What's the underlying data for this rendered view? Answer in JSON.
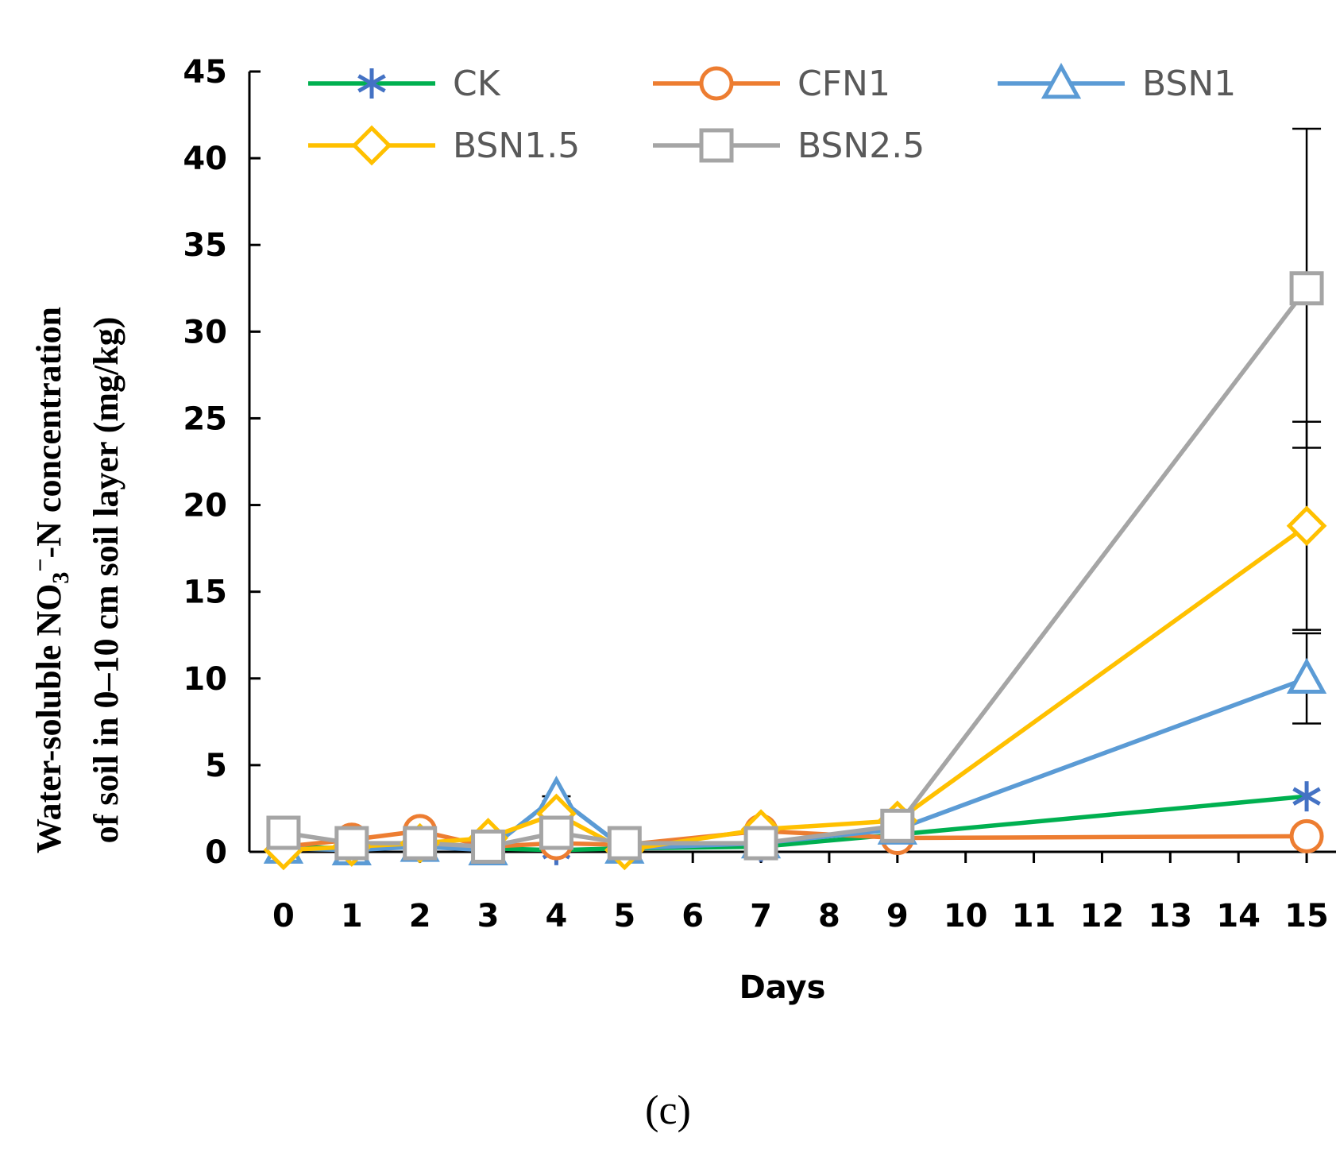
{
  "chart_data": {
    "type": "line",
    "title": "",
    "xlabel": "Days",
    "ylabel_line1": {
      "pre": "Water-soluble NO",
      "sub": "3",
      "sup": "−",
      "post": "-N concentration"
    },
    "ylabel_line2": "of soil in 0–10 cm soil layer (mg/kg)",
    "caption": "(c)",
    "x_ticks": [
      0,
      1,
      2,
      3,
      4,
      5,
      6,
      7,
      8,
      9,
      10,
      11,
      12,
      13,
      14,
      15
    ],
    "y_ticks": [
      0,
      5,
      10,
      15,
      20,
      25,
      30,
      35,
      40,
      45
    ],
    "ylim": [
      0,
      45
    ],
    "xlim": [
      -0.5,
      15.5
    ],
    "legend_position": "top",
    "series": [
      {
        "name": "CK",
        "color": "#00B050",
        "marker": "asterisk",
        "marker_color": "#4472C4",
        "x": [
          0,
          1,
          2,
          3,
          4,
          5,
          7,
          9,
          15
        ],
        "y": [
          0.3,
          0.2,
          0.3,
          0.2,
          0.1,
          0.2,
          0.3,
          1.0,
          3.2
        ]
      },
      {
        "name": "CFN1",
        "color": "#ED7D31",
        "marker": "circle",
        "marker_color": "#ED7D31",
        "x": [
          0,
          1,
          2,
          3,
          4,
          5,
          7,
          9,
          15
        ],
        "y": [
          0.3,
          0.7,
          1.2,
          0.3,
          0.5,
          0.4,
          1.2,
          0.8,
          0.9
        ]
      },
      {
        "name": "BSN1",
        "color": "#5B9BD5",
        "marker": "triangle",
        "marker_color": "#5B9BD5",
        "x": [
          0,
          1,
          2,
          3,
          4,
          5,
          7,
          9,
          15
        ],
        "y": [
          0.2,
          0.1,
          0.3,
          0.1,
          3.2,
          0.2,
          0.5,
          1.3,
          10.0
        ]
      },
      {
        "name": "BSN1.5",
        "color": "#FFC000",
        "marker": "diamond",
        "marker_color": "#FFC000",
        "x": [
          0,
          1,
          2,
          3,
          4,
          5,
          7,
          9,
          15
        ],
        "y": [
          0.1,
          0.3,
          0.5,
          0.8,
          2.2,
          0.1,
          1.3,
          1.8,
          18.8
        ]
      },
      {
        "name": "BSN2.5",
        "color": "#A5A5A5",
        "marker": "square",
        "marker_color": "#A5A5A5",
        "x": [
          0,
          1,
          2,
          3,
          4,
          5,
          7,
          9,
          15
        ],
        "y": [
          1.1,
          0.5,
          0.5,
          0.3,
          1.1,
          0.5,
          0.5,
          1.5,
          32.5
        ]
      }
    ],
    "error_bars": [
      {
        "series": "BSN2.5",
        "x": 15,
        "y": 32.5,
        "low": 23.3,
        "high": 41.7
      },
      {
        "series": "BSN1.5",
        "x": 15,
        "y": 18.8,
        "low": 12.8,
        "high": 24.8
      },
      {
        "series": "BSN1",
        "x": 15,
        "y": 10.0,
        "low": 7.4,
        "high": 12.6
      },
      {
        "series": "BSN1",
        "x": 4,
        "y": 3.2,
        "low": 2.9,
        "high": 3.2
      }
    ]
  }
}
